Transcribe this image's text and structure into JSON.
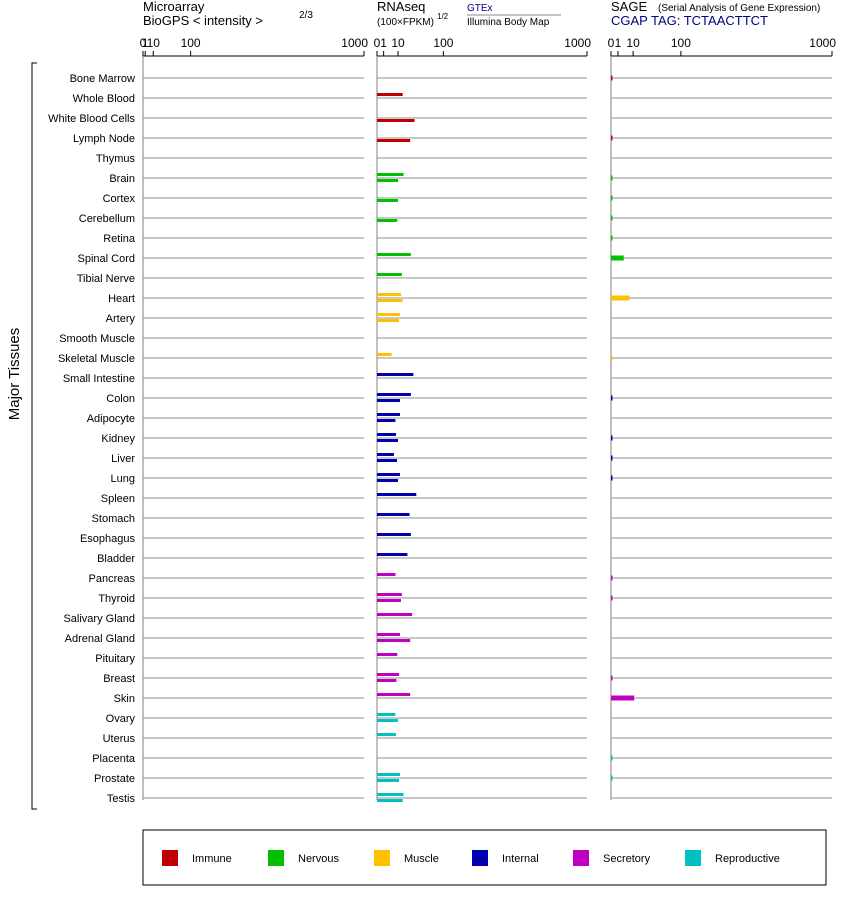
{
  "chart_data": {
    "type": "bar",
    "y_axis_title": "Major Tissues",
    "tissues": [
      "Bone Marrow",
      "Whole Blood",
      "White Blood Cells",
      "Lymph Node",
      "Thymus",
      "Brain",
      "Cortex",
      "Cerebellum",
      "Retina",
      "Spinal Cord",
      "Tibial Nerve",
      "Heart",
      "Artery",
      "Smooth Muscle",
      "Skeletal Muscle",
      "Small Intestine",
      "Colon",
      "Adipocyte",
      "Kidney",
      "Liver",
      "Lung",
      "Spleen",
      "Stomach",
      "Esophagus",
      "Bladder",
      "Pancreas",
      "Thyroid",
      "Salivary Gland",
      "Adrenal Gland",
      "Pituitary",
      "Breast",
      "Skin",
      "Ovary",
      "Uterus",
      "Placenta",
      "Prostate",
      "Testis"
    ],
    "tissue_groups": [
      "Immune",
      "Immune",
      "Immune",
      "Immune",
      "Immune",
      "Nervous",
      "Nervous",
      "Nervous",
      "Nervous",
      "Nervous",
      "Nervous",
      "Muscle",
      "Muscle",
      "Muscle",
      "Muscle",
      "Internal",
      "Internal",
      "Internal",
      "Internal",
      "Internal",
      "Internal",
      "Internal",
      "Internal",
      "Internal",
      "Internal",
      "Secretory",
      "Secretory",
      "Secretory",
      "Secretory",
      "Secretory",
      "Secretory",
      "Secretory",
      "Reproductive",
      "Reproductive",
      "Reproductive",
      "Reproductive",
      "Reproductive"
    ],
    "legend": [
      {
        "name": "Immune",
        "color": "#c00000"
      },
      {
        "name": "Nervous",
        "color": "#00c000"
      },
      {
        "name": "Muscle",
        "color": "#ffc000"
      },
      {
        "name": "Internal",
        "color": "#0000b0"
      },
      {
        "name": "Secretory",
        "color": "#c000c0"
      },
      {
        "name": "Reproductive",
        "color": "#00c0c0"
      }
    ],
    "panels": [
      {
        "id": "microarray",
        "title_line1": "Microarray",
        "title_line2": "BioGPS   < intensity >",
        "title_exponent": "2/3",
        "tag_label": "",
        "ticks": [
          0,
          1,
          10,
          100,
          1000
        ],
        "scale_power": 0.6667,
        "max": 1000,
        "gtex": null,
        "ibm": null,
        "values": null
      },
      {
        "id": "rnaseq",
        "title_line1": "RNAseq",
        "title_line2": "(100×FPKM)",
        "title_exponent": "1/2",
        "legend_top": "GTEx",
        "legend_bottom": "Illumina Body Map",
        "tag_label": "",
        "ticks": [
          0,
          1,
          10,
          100,
          1000
        ],
        "scale_power": 0.5,
        "max": 1000,
        "gtex": [
          null,
          15,
          null,
          null,
          null,
          16,
          null,
          null,
          null,
          26,
          14,
          13,
          12,
          null,
          4.8,
          30,
          26,
          12,
          8.2,
          6.5,
          12,
          35,
          24,
          26,
          21,
          7.8,
          14,
          28,
          12,
          9.3,
          11,
          25,
          7.7,
          8.1,
          null,
          12,
          16
        ],
        "ibm": [
          null,
          null,
          32,
          25,
          null,
          10,
          10,
          9.3,
          null,
          null,
          null,
          15,
          11,
          null,
          null,
          null,
          12,
          7.7,
          10,
          9.1,
          10,
          null,
          null,
          null,
          null,
          null,
          13,
          null,
          25,
          null,
          8.6,
          null,
          10,
          null,
          null,
          11,
          15
        ],
        "values": null
      },
      {
        "id": "sage",
        "title_line1": "SAGE",
        "title_subtitle": "(Serial Analysis of Gene Expression)",
        "tag_label": "CGAP TAG: TCTAACTTCT",
        "ticks": [
          0,
          1,
          10,
          100,
          1000
        ],
        "scale_power": 0.5,
        "max": 1000,
        "gtex": null,
        "ibm": null,
        "values": [
          0.01,
          null,
          null,
          0.01,
          null,
          0.01,
          0.01,
          0.01,
          0.01,
          3.3,
          null,
          7.0,
          null,
          null,
          0.01,
          null,
          0.01,
          null,
          0.01,
          0.01,
          0.01,
          null,
          null,
          null,
          null,
          0.01,
          0.01,
          null,
          null,
          null,
          0.01,
          11,
          null,
          null,
          0.01,
          0.01,
          null
        ]
      }
    ],
    "grid": true,
    "legend_position": "bottom"
  }
}
